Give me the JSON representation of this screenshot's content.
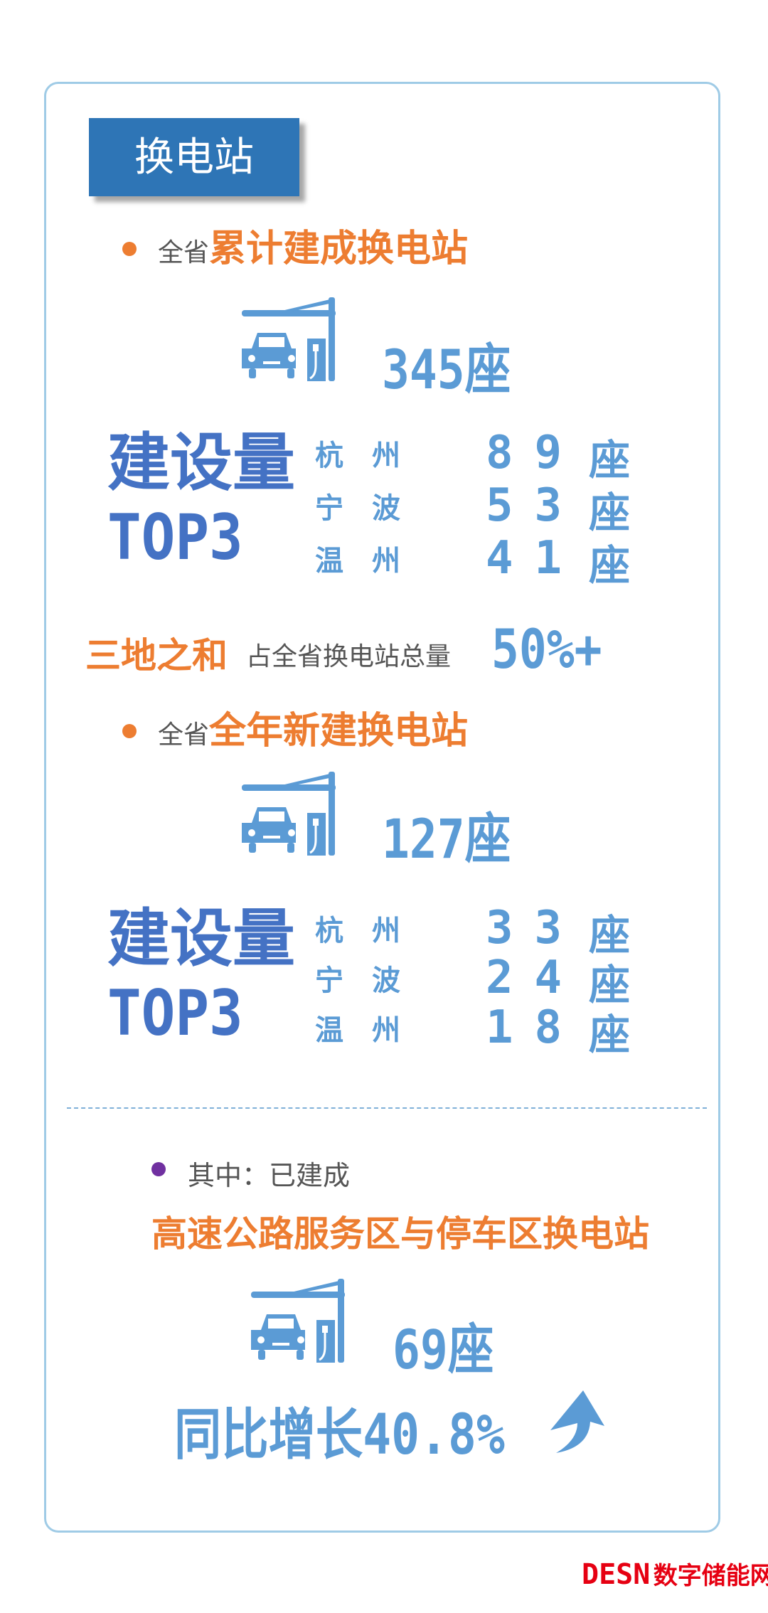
{
  "colors": {
    "title_bg": "#2e75b6",
    "accent_orange": "#ed7d31",
    "accent_blue": "#5b9bd5",
    "dark_blue": "#4472c4",
    "bullet_purple": "#7030a0",
    "logo_red": "#e60012"
  },
  "title": "换电站",
  "section1": {
    "prefix": "全省",
    "heading": "累计建成换电站",
    "icon": "charging-station-car-icon",
    "total": "345座",
    "top3_label_1": "建设量",
    "top3_label_2": "TOP3",
    "rows": [
      {
        "city": "杭州",
        "value": "89",
        "unit": "座"
      },
      {
        "city": "宁波",
        "value": "53",
        "unit": "座"
      },
      {
        "city": "温州",
        "value": "41",
        "unit": "座"
      }
    ],
    "sum_label": "三地之和",
    "sum_desc": "占全省换电站总量",
    "sum_value": "50%+"
  },
  "section2": {
    "prefix": "全省",
    "heading": "全年新建换电站",
    "icon": "charging-station-car-icon",
    "total": "127座",
    "top3_label_1": "建设量",
    "top3_label_2": "TOP3",
    "rows": [
      {
        "city": "杭州",
        "value": "33",
        "unit": "座"
      },
      {
        "city": "宁波",
        "value": "24",
        "unit": "座"
      },
      {
        "city": "温州",
        "value": "18",
        "unit": "座"
      }
    ]
  },
  "section3": {
    "sub": "其中：已建成",
    "heading": "高速公路服务区与停车区换电站",
    "icon": "charging-station-car-icon",
    "total": "69座",
    "growth": "同比增长40.8%",
    "growth_icon": "arrow-up-icon"
  },
  "watermark": {
    "brand": "DESN",
    "name": "数字储能网"
  }
}
